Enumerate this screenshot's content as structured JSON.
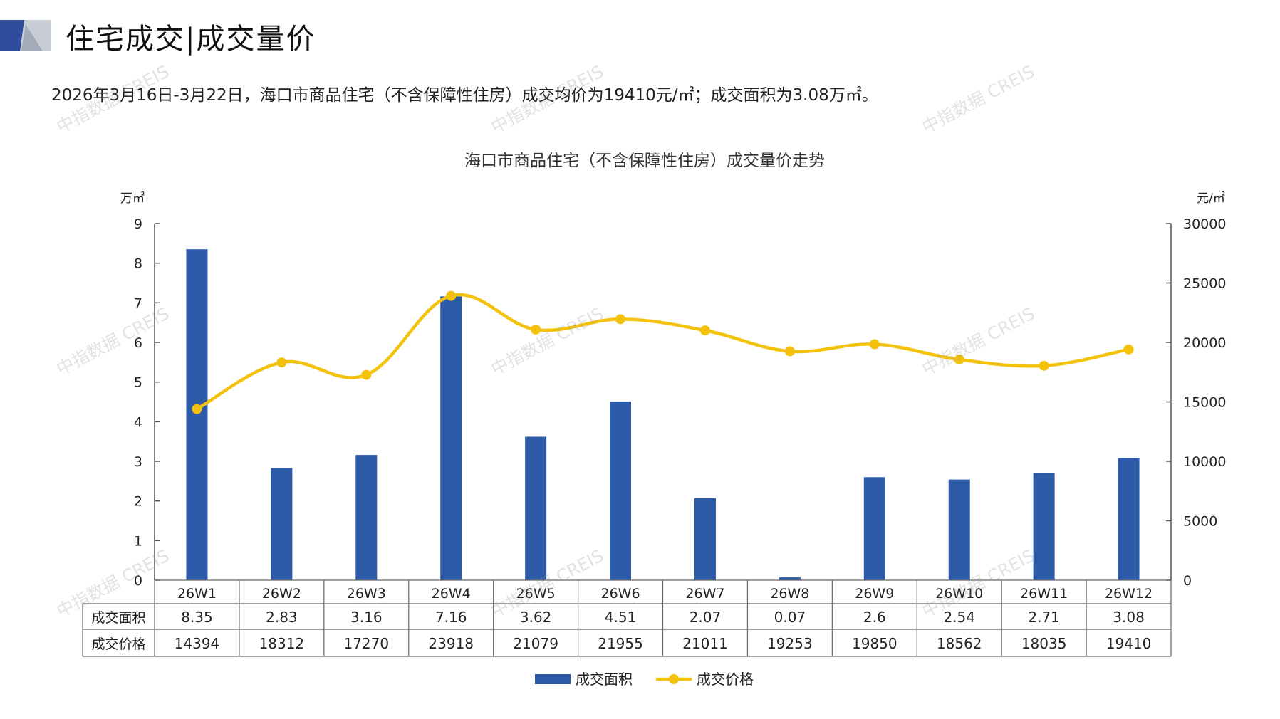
{
  "header": {
    "title": "住宅成交|成交量价",
    "summary": "2026年3月16日-3月22日，海口市商品住宅（不含保障性住房）成交均价为19410元/㎡；成交面积为3.08万㎡。"
  },
  "watermark_text": "中指数据 CREIS",
  "colors": {
    "bar": "#2E5BA8",
    "line": "#F4C20D",
    "accent_dark": "#2E4C9A",
    "accent_gray": "#C8CCD4",
    "grid_axis": "#555555"
  },
  "chart_data": {
    "type": "bar",
    "title": "海口市商品住宅（不含保障性住房）成交量价走势",
    "categories": [
      "26W1",
      "26W2",
      "26W3",
      "26W4",
      "26W5",
      "26W6",
      "26W7",
      "26W8",
      "26W9",
      "26W10",
      "26W11",
      "26W12"
    ],
    "series": [
      {
        "name": "成交面积",
        "type": "bar",
        "axis": "left",
        "values": [
          8.35,
          2.83,
          3.16,
          7.16,
          3.62,
          4.51,
          2.07,
          0.07,
          2.6,
          2.54,
          2.71,
          3.08
        ],
        "display": [
          "8.35",
          "2.83",
          "3.16",
          "7.16",
          "3.62",
          "4.51",
          "2.07",
          "0.07",
          "2.6",
          "2.54",
          "2.71",
          "3.08"
        ]
      },
      {
        "name": "成交价格",
        "type": "line",
        "axis": "right",
        "values": [
          14394,
          18312,
          17270,
          23918,
          21079,
          21955,
          21011,
          19253,
          19850,
          18562,
          18035,
          19410
        ]
      }
    ],
    "y_left": {
      "unit": "万㎡",
      "ylim": [
        0,
        9
      ],
      "ticks": [
        "0",
        "1",
        "2",
        "3",
        "4",
        "5",
        "6",
        "7",
        "8",
        "9"
      ]
    },
    "y_right": {
      "unit": "元/㎡",
      "ylim": [
        0,
        30000
      ],
      "ticks": [
        "0",
        "5000",
        "10000",
        "15000",
        "20000",
        "25000",
        "30000"
      ]
    },
    "legend_position": "bottom-center",
    "grid": false,
    "data_table": true
  }
}
